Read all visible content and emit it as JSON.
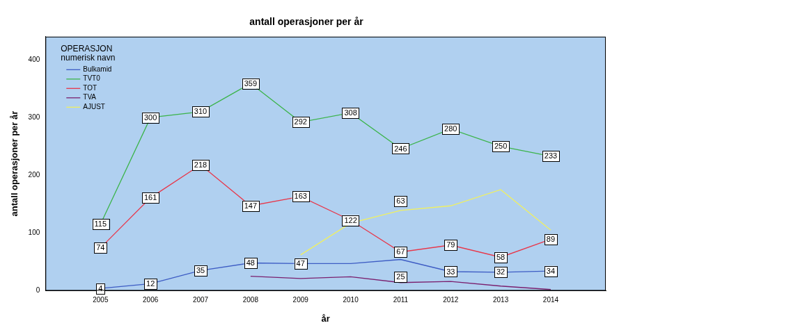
{
  "chart_data": {
    "type": "line",
    "title": "antall operasjoner per år",
    "x_label": "år",
    "y_label": "antall operasjoner per år",
    "x": [
      2005,
      2006,
      2007,
      2008,
      2009,
      2010,
      2011,
      2012,
      2013,
      2014
    ],
    "xlim": [
      2003.9,
      2015.1
    ],
    "xticks": [
      2005,
      2006,
      2007,
      2008,
      2009,
      2010,
      2011,
      2012,
      2013,
      2014
    ],
    "ylim": [
      0,
      440
    ],
    "yticks": [
      0,
      100,
      200,
      300,
      400
    ],
    "grid": false,
    "legend": "top-left",
    "legend_title": [
      "OPERASJON",
      "numerisk navn"
    ],
    "data_labels": true,
    "series": [
      {
        "name": "Bulkamid",
        "color": "#3d5cc4",
        "values": [
          4,
          12,
          35,
          48,
          47,
          47,
          54,
          33,
          32,
          34
        ],
        "value_labels": [
          "4",
          "12",
          "35",
          "48",
          "47",
          null,
          null,
          "33",
          "32",
          "34"
        ]
      },
      {
        "name": "TVT0",
        "color": "#3cb44b",
        "values": [
          115,
          300,
          310,
          359,
          292,
          308,
          246,
          280,
          250,
          233
        ],
        "value_labels": [
          "115",
          "300",
          "310",
          "359",
          "292",
          "308",
          "246",
          "280",
          "250",
          "233"
        ]
      },
      {
        "name": "TOT",
        "color": "#e8374a",
        "values": [
          74,
          161,
          218,
          147,
          163,
          122,
          67,
          79,
          58,
          89
        ],
        "value_labels": [
          "74",
          "161",
          "218",
          "147",
          "163",
          "122",
          "67",
          "79",
          "58",
          "89"
        ]
      },
      {
        "name": "TVA",
        "color": "#7a1f6e",
        "values": [
          null,
          null,
          null,
          25,
          21,
          24,
          14,
          16,
          8,
          2
        ],
        "value_labels": [
          null,
          null,
          null,
          null,
          null,
          null,
          null,
          null,
          null,
          null
        ]
      },
      {
        "name": "AJUST",
        "color": "#f0f060",
        "values": [
          null,
          null,
          null,
          null,
          62,
          117,
          139,
          147,
          175,
          105
        ],
        "value_labels": [
          null,
          null,
          null,
          null,
          null,
          null,
          null,
          null,
          null,
          null
        ]
      }
    ],
    "annotations": [
      {
        "label": "63",
        "x": 2011,
        "y": 155
      },
      {
        "label": "25",
        "x": 2011,
        "y": 24
      }
    ]
  }
}
